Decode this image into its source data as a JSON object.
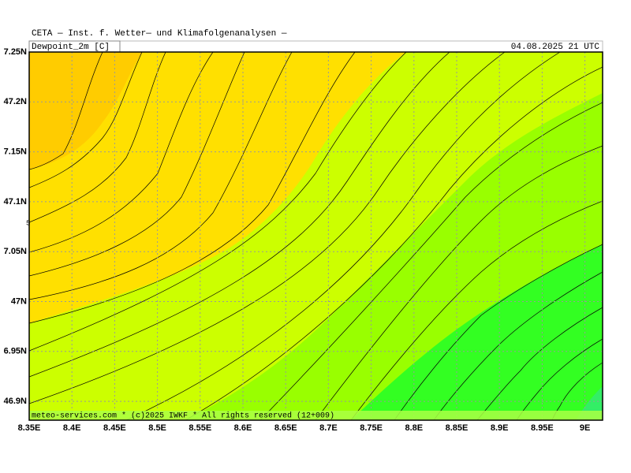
{
  "header": {
    "title": "CETA — Inst. f. Wetter— und Klimafolgenanalysen —",
    "variable": "Dewpoint_2m [C]",
    "date": "04.08.2025 21 UTC"
  },
  "axes": {
    "x_labels": [
      "8.35E",
      "8.4E",
      "8.45E",
      "8.5E",
      "8.55E",
      "8.6E",
      "8.65E",
      "8.7E",
      "8.75E",
      "8.8E",
      "8.85E",
      "8.9E",
      "8.95E",
      "9E"
    ],
    "y_labels": [
      "7.25N",
      "47.2N",
      "7.15N",
      "47.1N",
      "7.05N",
      "47N",
      "6.95N",
      "46.9N"
    ]
  },
  "contour_label": "5",
  "footer": {
    "credit": "meteo-services.com * (c)2025 IWKF * All rights reserved (12+009)"
  }
}
